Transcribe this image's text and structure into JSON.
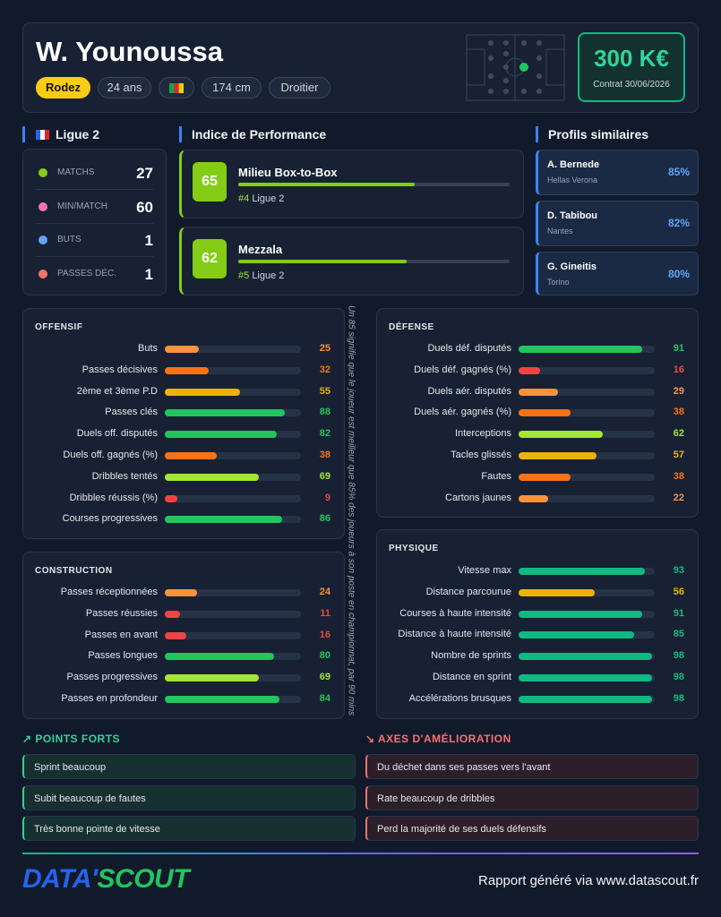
{
  "header": {
    "name": "W. Younoussa",
    "club": "Rodez",
    "age": "24 ans",
    "height": "174 cm",
    "foot": "Droitier",
    "market_value": "300 K€",
    "contract": "Contrat 30/06/2026"
  },
  "league": {
    "title": "Ligue 2",
    "stats": [
      {
        "label": "MATCHS",
        "value": 27
      },
      {
        "label": "MIN/MATCH",
        "value": 60
      },
      {
        "label": "BUTS",
        "value": 1
      },
      {
        "label": "PASSES DÉC.",
        "value": 1
      }
    ]
  },
  "performance": {
    "title": "Indice de Performance",
    "items": [
      {
        "score": 65,
        "role": "Milieu Box-to-Box",
        "rank": "#4",
        "league": "Ligue 2"
      },
      {
        "score": 62,
        "role": "Mezzala",
        "rank": "#5",
        "league": "Ligue 2"
      }
    ]
  },
  "similar": {
    "title": "Profils similaires",
    "players": [
      {
        "name": "A. Bernede",
        "club": "Hellas Verona",
        "match": "85%"
      },
      {
        "name": "D. Tabibou",
        "club": "Nantes",
        "match": "82%"
      },
      {
        "name": "G. Gineitis",
        "club": "Torino",
        "match": "80%"
      }
    ]
  },
  "sections": [
    {
      "title": "OFFENSIF",
      "high_color": "#22c55e",
      "metrics": [
        {
          "label": "Buts",
          "value": 25
        },
        {
          "label": "Passes décisives",
          "value": 32
        },
        {
          "label": "2ème et 3ème P.D",
          "value": 55
        },
        {
          "label": "Passes clés",
          "value": 88
        },
        {
          "label": "Duels off. disputés",
          "value": 82
        },
        {
          "label": "Duels off. gagnés (%)",
          "value": 38
        },
        {
          "label": "Dribbles tentés",
          "value": 69
        },
        {
          "label": "Dribbles réussis (%)",
          "value": 9
        },
        {
          "label": "Courses progressives",
          "value": 86
        }
      ]
    },
    {
      "title": "CONSTRUCTION",
      "high_color": "#22c55e",
      "metrics": [
        {
          "label": "Passes réceptionnées",
          "value": 24
        },
        {
          "label": "Passes réussies",
          "value": 11
        },
        {
          "label": "Passes en avant",
          "value": 16
        },
        {
          "label": "Passes longues",
          "value": 80
        },
        {
          "label": "Passes progressives",
          "value": 69
        },
        {
          "label": "Passes en profondeur",
          "value": 84
        }
      ]
    },
    {
      "title": "DÉFENSE",
      "high_color": "#22c55e",
      "metrics": [
        {
          "label": "Duels déf. disputés",
          "value": 91
        },
        {
          "label": "Duels déf. gagnés (%)",
          "value": 16
        },
        {
          "label": "Duels aér. disputés",
          "value": 29
        },
        {
          "label": "Duels aér. gagnés (%)",
          "value": 38
        },
        {
          "label": "Interceptions",
          "value": 62
        },
        {
          "label": "Tacles glissés",
          "value": 57
        },
        {
          "label": "Fautes",
          "value": 38
        },
        {
          "label": "Cartons jaunes",
          "value": 22
        }
      ]
    },
    {
      "title": "PHYSIQUE",
      "high_color": "#10b981",
      "metrics": [
        {
          "label": "Vitesse max",
          "value": 93
        },
        {
          "label": "Distance parcourue",
          "value": 56
        },
        {
          "label": "Courses à haute intensité",
          "value": 91
        },
        {
          "label": "Distance à haute intensité",
          "value": 85
        },
        {
          "label": "Nombre de sprints",
          "value": 98
        },
        {
          "label": "Distance en sprint",
          "value": 98
        },
        {
          "label": "Accélérations brusques",
          "value": 98
        }
      ]
    }
  ],
  "note": "Un 85 signifie que le joueur est meilleur que 85% des joueurs à son poste en championnat, par 90 mins",
  "strengths": {
    "title": "POINTS FORTS",
    "items": [
      "Sprint beaucoup",
      "Subit beaucoup de fautes",
      "Très bonne pointe de vitesse"
    ]
  },
  "improvements": {
    "title": "AXES D'AMÉLIORATION",
    "items": [
      "Du déchet dans ses passes vers l'avant",
      "Rate beaucoup de dribbles",
      "Perd la majorité de ses duels défensifs"
    ]
  },
  "footer": {
    "logo_left": "DATA'",
    "logo_right": "SCOUT",
    "credit": "Rapport généré via www.datascout.fr"
  }
}
